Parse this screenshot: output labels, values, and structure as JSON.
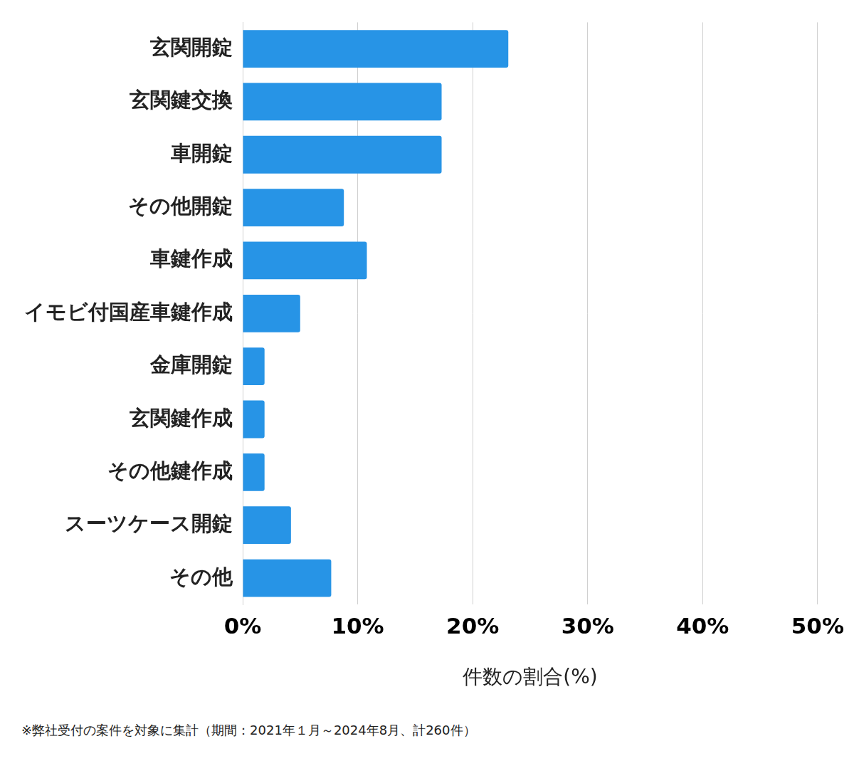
{
  "chart_data": {
    "type": "bar",
    "orientation": "horizontal",
    "categories": [
      "玄関開錠",
      "玄関鍵交換",
      "車開錠",
      "その他開錠",
      "車鍵作成",
      "イモビ付国産車鍵作成",
      "金庫開錠",
      "玄関鍵作成",
      "その他鍵作成",
      "スーツケース開錠",
      "その他"
    ],
    "values": [
      23.1,
      17.3,
      17.3,
      8.8,
      10.8,
      5.0,
      1.9,
      1.9,
      1.9,
      4.2,
      7.7
    ],
    "color": "#2794e6",
    "x_label": "件数の割合(%)",
    "xlim": [
      0,
      50
    ],
    "xticks": [
      {
        "value": 0,
        "label": "0%"
      },
      {
        "value": 10,
        "label": "10%"
      },
      {
        "value": 20,
        "label": "20%"
      },
      {
        "value": 30,
        "label": "30%"
      },
      {
        "value": 40,
        "label": "40%"
      },
      {
        "value": 50,
        "label": "50%"
      }
    ],
    "grid": true,
    "note": "※弊社受付の案件を対象に集計（期間：2021年１月～2024年8月、計260件）"
  }
}
